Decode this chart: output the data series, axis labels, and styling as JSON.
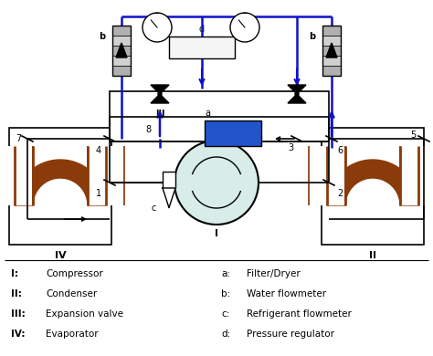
{
  "bg_color": "#ffffff",
  "BK": "#000000",
  "BL": "#1010cc",
  "BR": "#8B3A0A",
  "comp_fill": "#d8ede8",
  "filter_fill": "#2255cc",
  "lphp_fill": "#f5f5f5",
  "gauge_fill": "#ffffff",
  "legend_left": [
    [
      "I:",
      "Compressor"
    ],
    [
      "II:",
      "Condenser"
    ],
    [
      "III:",
      "Expansion valve"
    ],
    [
      "IV:",
      "Evaporator"
    ]
  ],
  "legend_right": [
    [
      "a:",
      "Filter/Dryer"
    ],
    [
      "b:",
      "Water flowmeter"
    ],
    [
      "c:",
      "Refrigerant flowmeter"
    ],
    [
      "d:",
      "Pressure regulator"
    ]
  ]
}
